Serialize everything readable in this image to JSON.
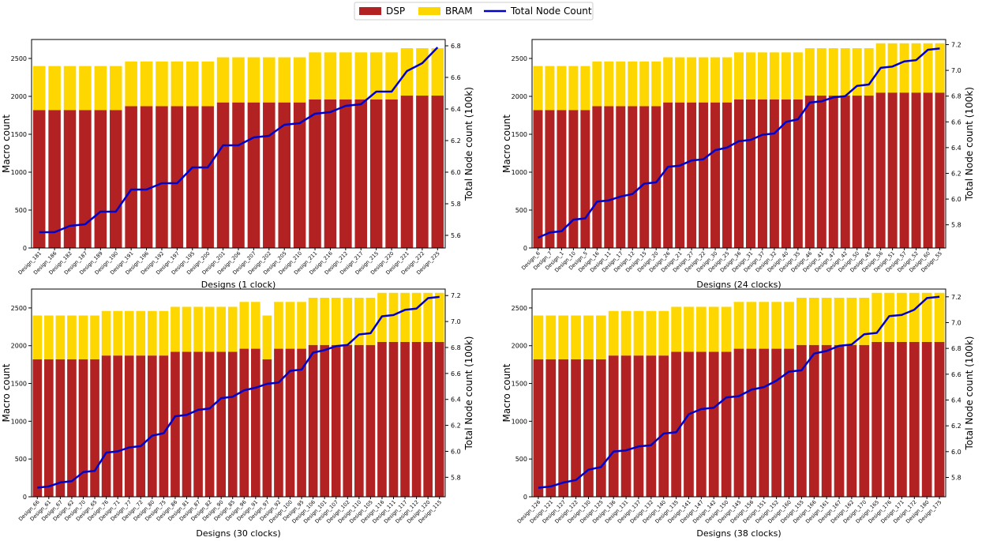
{
  "legend": [
    {
      "label": "DSP",
      "color": "#b22222",
      "kind": "patch"
    },
    {
      "label": "BRAM",
      "color": "#ffd700",
      "kind": "patch"
    },
    {
      "label": "Total Node Count",
      "color": "#0000cd",
      "kind": "line"
    }
  ],
  "chart_data": [
    {
      "type": "bar",
      "stacked": true,
      "xlabel": "Designs (1 clock)",
      "ylabel": "Macro count",
      "y2label": "Total Node count (100k)",
      "ylim": [
        0,
        2750
      ],
      "yticks": [
        0,
        500,
        1000,
        1500,
        2000,
        2500
      ],
      "y2lim": [
        5.52,
        6.84
      ],
      "y2ticks": [
        5.6,
        5.8,
        6.0,
        6.2,
        6.4,
        6.6,
        6.8
      ],
      "categories": [
        "Design_181",
        "Design_186",
        "Design_182",
        "Design_187",
        "Design_189",
        "Design_190",
        "Design_191",
        "Design_196",
        "Design_192",
        "Design_197",
        "Design_195",
        "Design_200",
        "Design_201",
        "Design_206",
        "Design_207",
        "Design_202",
        "Design_205",
        "Design_210",
        "Design_211",
        "Design_216",
        "Design_212",
        "Design_217",
        "Design_215",
        "Design_220",
        "Design_221",
        "Design_222",
        "Design_225"
      ],
      "series": [
        {
          "name": "DSP",
          "kind": "bar",
          "values": [
            1820,
            1820,
            1820,
            1820,
            1820,
            1820,
            1870,
            1870,
            1870,
            1870,
            1870,
            1870,
            1920,
            1920,
            1920,
            1920,
            1920,
            1920,
            1960,
            1960,
            1960,
            1960,
            1960,
            1960,
            2010,
            2010,
            2010
          ]
        },
        {
          "name": "BRAM",
          "kind": "bar",
          "values": [
            580,
            580,
            580,
            580,
            580,
            580,
            590,
            590,
            590,
            590,
            590,
            590,
            595,
            595,
            595,
            595,
            595,
            595,
            620,
            620,
            620,
            620,
            620,
            620,
            625,
            625,
            625
          ]
        },
        {
          "name": "Total Node Count",
          "kind": "line",
          "axis": "right",
          "values": [
            5.62,
            5.62,
            5.66,
            5.67,
            5.75,
            5.75,
            5.89,
            5.89,
            5.93,
            5.93,
            6.03,
            6.03,
            6.17,
            6.17,
            6.22,
            6.23,
            6.3,
            6.31,
            6.37,
            6.38,
            6.42,
            6.43,
            6.51,
            6.51,
            6.64,
            6.69,
            6.79
          ]
        }
      ]
    },
    {
      "type": "bar",
      "stacked": true,
      "xlabel": "Designs (24 clocks)",
      "ylabel": "Macro count",
      "y2label": "Total Node count (100k)",
      "ylim": [
        0,
        2750
      ],
      "yticks": [
        0,
        500,
        1000,
        1500,
        2000,
        2500
      ],
      "y2lim": [
        5.62,
        7.24
      ],
      "y2ticks": [
        5.8,
        6.0,
        6.2,
        6.4,
        6.6,
        6.8,
        7.0,
        7.2
      ],
      "categories": [
        "Design_6",
        "Design_7",
        "Design_1",
        "Design_10",
        "Design_5",
        "Design_16",
        "Design_11",
        "Design_17",
        "Design_12",
        "Design_15",
        "Design_20",
        "Design_26",
        "Design_21",
        "Design_27",
        "Design_22",
        "Design_30",
        "Design_25",
        "Design_36",
        "Design_31",
        "Design_37",
        "Design_32",
        "Design_40",
        "Design_35",
        "Design_46",
        "Design_41",
        "Design_47",
        "Design_42",
        "Design_50",
        "Design_45",
        "Design_56",
        "Design_51",
        "Design_57",
        "Design_52",
        "Design_60",
        "Design_55"
      ],
      "series": [
        {
          "name": "DSP",
          "kind": "bar",
          "values": [
            1820,
            1820,
            1820,
            1820,
            1820,
            1870,
            1870,
            1870,
            1870,
            1870,
            1870,
            1920,
            1920,
            1920,
            1920,
            1920,
            1920,
            1960,
            1960,
            1960,
            1960,
            1960,
            1960,
            2010,
            2010,
            2010,
            2010,
            2010,
            2010,
            2050,
            2050,
            2050,
            2050,
            2050,
            2050
          ]
        },
        {
          "name": "BRAM",
          "kind": "bar",
          "values": [
            580,
            580,
            580,
            580,
            580,
            590,
            590,
            590,
            590,
            590,
            590,
            595,
            595,
            595,
            595,
            595,
            595,
            620,
            620,
            620,
            620,
            620,
            620,
            625,
            625,
            625,
            625,
            625,
            625,
            650,
            650,
            650,
            650,
            650,
            650
          ]
        },
        {
          "name": "Total Node Count",
          "kind": "line",
          "axis": "right",
          "values": [
            5.7,
            5.74,
            5.75,
            5.84,
            5.85,
            5.98,
            5.99,
            6.02,
            6.04,
            6.12,
            6.13,
            6.25,
            6.26,
            6.3,
            6.31,
            6.38,
            6.4,
            6.45,
            6.46,
            6.5,
            6.51,
            6.6,
            6.62,
            6.75,
            6.76,
            6.79,
            6.8,
            6.88,
            6.89,
            7.02,
            7.03,
            7.07,
            7.08,
            7.16,
            7.17
          ]
        }
      ]
    },
    {
      "type": "bar",
      "stacked": true,
      "xlabel": "Designs (30 clocks)",
      "ylabel": "Macro count",
      "y2label": "Total Node count (100k)",
      "ylim": [
        0,
        2750
      ],
      "yticks": [
        0,
        500,
        1000,
        1500,
        2000,
        2500
      ],
      "y2lim": [
        5.65,
        7.25
      ],
      "y2ticks": [
        5.8,
        6.0,
        6.2,
        6.4,
        6.6,
        6.8,
        7.0,
        7.2
      ],
      "categories": [
        "Design_66",
        "Design_61",
        "Design_67",
        "Design_62",
        "Design_70",
        "Design_65",
        "Design_76",
        "Design_71",
        "Design_77",
        "Design_72",
        "Design_80",
        "Design_75",
        "Design_86",
        "Design_81",
        "Design_87",
        "Design_82",
        "Design_90",
        "Design_85",
        "Design_96",
        "Design_91",
        "Design_97",
        "Design_92",
        "Design_100",
        "Design_95",
        "Design_106",
        "Design_101",
        "Design_107",
        "Design_102",
        "Design_110",
        "Design_105",
        "Design_116",
        "Design_111",
        "Design_117",
        "Design_112",
        "Design_120",
        "Design_115"
      ],
      "series": [
        {
          "name": "DSP",
          "kind": "bar",
          "values": [
            1820,
            1820,
            1820,
            1820,
            1820,
            1820,
            1870,
            1870,
            1870,
            1870,
            1870,
            1870,
            1920,
            1920,
            1920,
            1920,
            1920,
            1920,
            1960,
            1960,
            1820,
            1960,
            1960,
            1960,
            2010,
            2010,
            2010,
            2010,
            2010,
            2010,
            2050,
            2050,
            2050,
            2050,
            2050,
            2050
          ]
        },
        {
          "name": "BRAM",
          "kind": "bar",
          "values": [
            580,
            580,
            580,
            580,
            580,
            580,
            590,
            590,
            590,
            590,
            590,
            590,
            595,
            595,
            595,
            595,
            595,
            595,
            620,
            620,
            580,
            620,
            620,
            620,
            625,
            625,
            625,
            625,
            625,
            625,
            650,
            650,
            650,
            650,
            650,
            650
          ]
        },
        {
          "name": "Total Node Count",
          "kind": "line",
          "axis": "right",
          "values": [
            5.72,
            5.73,
            5.76,
            5.77,
            5.84,
            5.85,
            5.99,
            6.0,
            6.03,
            6.04,
            6.12,
            6.14,
            6.27,
            6.28,
            6.32,
            6.33,
            6.41,
            6.42,
            6.47,
            6.49,
            6.52,
            6.53,
            6.62,
            6.63,
            6.76,
            6.78,
            6.81,
            6.82,
            6.9,
            6.91,
            7.04,
            7.05,
            7.09,
            7.1,
            7.18,
            7.19
          ]
        }
      ]
    },
    {
      "type": "bar",
      "stacked": true,
      "xlabel": "Designs (38 clocks)",
      "ylabel": "Macro count",
      "y2label": "Total Node count (100k)",
      "ylim": [
        0,
        2750
      ],
      "yticks": [
        0,
        500,
        1000,
        1500,
        2000,
        2500
      ],
      "y2lim": [
        5.65,
        7.26
      ],
      "y2ticks": [
        5.8,
        6.0,
        6.2,
        6.4,
        6.6,
        6.8,
        7.0,
        7.2
      ],
      "categories": [
        "Design_126",
        "Design_121",
        "Design_127",
        "Design_122",
        "Design_130",
        "Design_125",
        "Design_136",
        "Design_131",
        "Design_137",
        "Design_132",
        "Design_140",
        "Design_135",
        "Design_141",
        "Design_147",
        "Design_142",
        "Design_150",
        "Design_145",
        "Design_156",
        "Design_151",
        "Design_152",
        "Design_160",
        "Design_155",
        "Design_166",
        "Design_161",
        "Design_167",
        "Design_162",
        "Design_170",
        "Design_165",
        "Design_176",
        "Design_171",
        "Design_172",
        "Design_180",
        "Design_175"
      ],
      "series": [
        {
          "name": "DSP",
          "kind": "bar",
          "values": [
            1820,
            1820,
            1820,
            1820,
            1820,
            1820,
            1870,
            1870,
            1870,
            1870,
            1870,
            1920,
            1920,
            1920,
            1920,
            1920,
            1960,
            1960,
            1960,
            1960,
            1960,
            2010,
            2010,
            2010,
            2010,
            2010,
            2010,
            2050,
            2050,
            2050,
            2050,
            2050,
            2050
          ]
        },
        {
          "name": "BRAM",
          "kind": "bar",
          "values": [
            580,
            580,
            580,
            580,
            580,
            580,
            590,
            590,
            590,
            590,
            590,
            595,
            595,
            595,
            595,
            595,
            620,
            620,
            620,
            620,
            620,
            625,
            625,
            625,
            625,
            625,
            625,
            650,
            650,
            650,
            650,
            650,
            650
          ]
        },
        {
          "name": "Total Node Count",
          "kind": "line",
          "axis": "right",
          "values": [
            5.72,
            5.73,
            5.76,
            5.78,
            5.86,
            5.88,
            6.0,
            6.01,
            6.04,
            6.05,
            6.14,
            6.15,
            6.29,
            6.33,
            6.34,
            6.42,
            6.43,
            6.48,
            6.5,
            6.55,
            6.62,
            6.63,
            6.76,
            6.78,
            6.82,
            6.83,
            6.91,
            6.92,
            7.05,
            7.06,
            7.1,
            7.19,
            7.2
          ]
        }
      ]
    }
  ]
}
